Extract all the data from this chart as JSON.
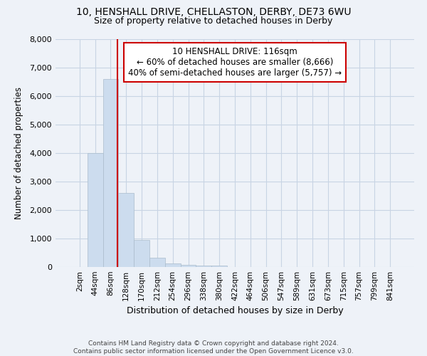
{
  "title_line1": "10, HENSHALL DRIVE, CHELLASTON, DERBY, DE73 6WU",
  "title_line2": "Size of property relative to detached houses in Derby",
  "xlabel": "Distribution of detached houses by size in Derby",
  "ylabel": "Number of detached properties",
  "footer_line1": "Contains HM Land Registry data © Crown copyright and database right 2024.",
  "footer_line2": "Contains public sector information licensed under the Open Government Licence v3.0.",
  "bar_labels": [
    "2sqm",
    "44sqm",
    "86sqm",
    "128sqm",
    "170sqm",
    "212sqm",
    "254sqm",
    "296sqm",
    "338sqm",
    "380sqm",
    "422sqm",
    "464sqm",
    "506sqm",
    "547sqm",
    "589sqm",
    "631sqm",
    "673sqm",
    "715sqm",
    "757sqm",
    "799sqm",
    "841sqm"
  ],
  "bar_values": [
    0,
    4000,
    6600,
    2600,
    950,
    330,
    130,
    80,
    50,
    50,
    0,
    0,
    0,
    0,
    0,
    0,
    0,
    0,
    0,
    0,
    0
  ],
  "bar_color": "#ccdcee",
  "bar_edge_color": "#aabccc",
  "grid_color": "#c8d4e4",
  "background_color": "#eef2f8",
  "vline_x_index": 2.42,
  "vline_color": "#cc0000",
  "annotation_text": "10 HENSHALL DRIVE: 116sqm\n← 60% of detached houses are smaller (8,666)\n40% of semi-detached houses are larger (5,757) →",
  "annotation_box_color": "#ffffff",
  "annotation_box_edge_color": "#cc0000",
  "ylim": [
    0,
    8000
  ],
  "yticks": [
    0,
    1000,
    2000,
    3000,
    4000,
    5000,
    6000,
    7000,
    8000
  ]
}
